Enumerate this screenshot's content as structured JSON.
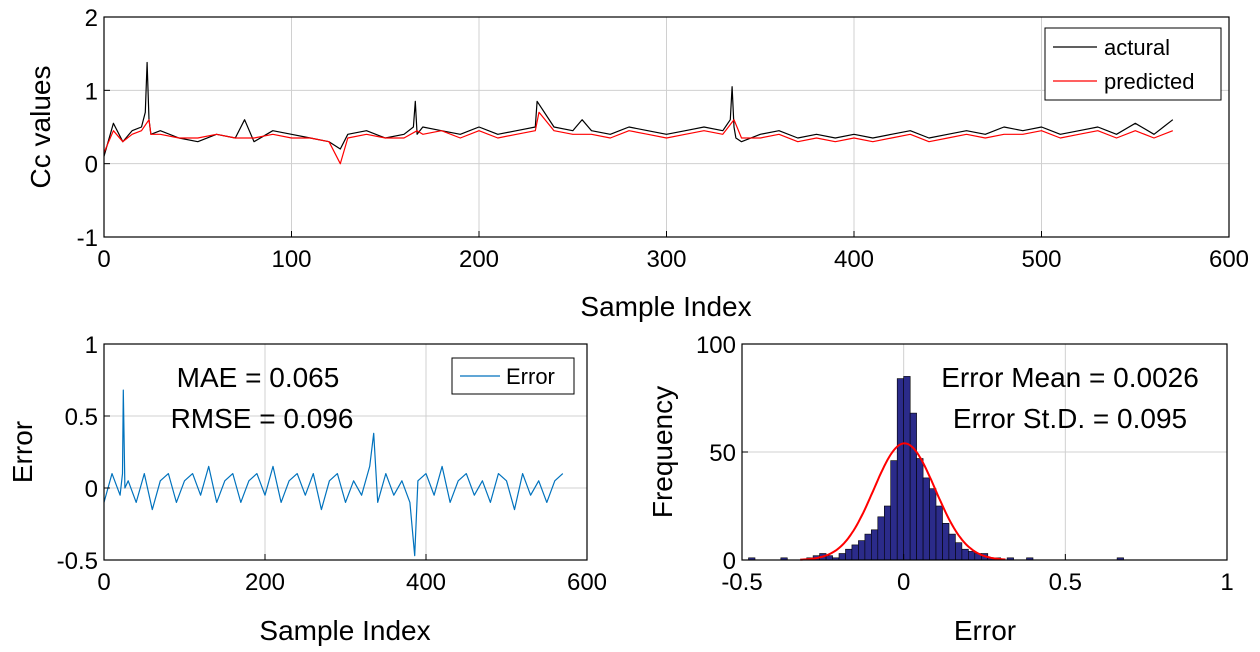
{
  "chart_data": [
    {
      "type": "line",
      "xlabel": "Sample Index",
      "ylabel": "Cc values",
      "xlim": [
        0,
        600
      ],
      "ylim": [
        -1,
        2
      ],
      "xticks": [
        0,
        100,
        200,
        300,
        400,
        500,
        600
      ],
      "yticks": [
        -1,
        0,
        1,
        2
      ],
      "grid": true,
      "legend_position": "top-right",
      "series": [
        {
          "name": "actural",
          "color": "#000000",
          "x": [
            0,
            5,
            10,
            15,
            20,
            22,
            23,
            24,
            25,
            30,
            40,
            50,
            60,
            70,
            75,
            80,
            90,
            100,
            110,
            120,
            126,
            130,
            140,
            150,
            160,
            165,
            166,
            167,
            170,
            180,
            190,
            200,
            210,
            220,
            230,
            231,
            240,
            250,
            255,
            260,
            270,
            280,
            290,
            300,
            310,
            320,
            330,
            334,
            335,
            336,
            337,
            340,
            350,
            360,
            370,
            380,
            390,
            400,
            410,
            420,
            430,
            440,
            450,
            460,
            470,
            480,
            490,
            500,
            510,
            520,
            530,
            540,
            550,
            560,
            565,
            570
          ],
          "y": [
            0.1,
            0.55,
            0.3,
            0.45,
            0.5,
            0.7,
            1.38,
            0.6,
            0.4,
            0.45,
            0.35,
            0.3,
            0.4,
            0.35,
            0.6,
            0.3,
            0.45,
            0.4,
            0.35,
            0.3,
            0.2,
            0.4,
            0.45,
            0.35,
            0.4,
            0.5,
            0.85,
            0.4,
            0.5,
            0.45,
            0.4,
            0.5,
            0.4,
            0.45,
            0.5,
            0.85,
            0.5,
            0.45,
            0.6,
            0.45,
            0.4,
            0.5,
            0.45,
            0.4,
            0.45,
            0.5,
            0.45,
            0.6,
            1.05,
            0.5,
            0.35,
            0.3,
            0.4,
            0.45,
            0.35,
            0.4,
            0.35,
            0.4,
            0.35,
            0.4,
            0.45,
            0.35,
            0.4,
            0.45,
            0.4,
            0.5,
            0.45,
            0.5,
            0.4,
            0.45,
            0.5,
            0.4,
            0.55,
            0.4,
            0.5,
            0.6
          ]
        },
        {
          "name": "predicted",
          "color": "#ff0000",
          "x": [
            0,
            5,
            10,
            15,
            20,
            24,
            25,
            30,
            40,
            50,
            60,
            70,
            80,
            90,
            100,
            110,
            120,
            126,
            130,
            140,
            150,
            160,
            167,
            170,
            180,
            190,
            200,
            210,
            220,
            230,
            232,
            240,
            250,
            260,
            270,
            280,
            290,
            300,
            310,
            320,
            330,
            336,
            340,
            350,
            360,
            370,
            380,
            390,
            400,
            410,
            420,
            430,
            440,
            450,
            460,
            470,
            480,
            490,
            500,
            510,
            520,
            530,
            540,
            550,
            560,
            570
          ],
          "y": [
            0.15,
            0.45,
            0.3,
            0.4,
            0.45,
            0.6,
            0.4,
            0.4,
            0.35,
            0.35,
            0.4,
            0.35,
            0.35,
            0.4,
            0.35,
            0.35,
            0.3,
            0.0,
            0.35,
            0.4,
            0.35,
            0.35,
            0.45,
            0.4,
            0.45,
            0.35,
            0.45,
            0.35,
            0.4,
            0.45,
            0.7,
            0.45,
            0.4,
            0.4,
            0.35,
            0.45,
            0.4,
            0.35,
            0.4,
            0.45,
            0.4,
            0.6,
            0.35,
            0.35,
            0.4,
            0.3,
            0.35,
            0.3,
            0.35,
            0.3,
            0.35,
            0.4,
            0.3,
            0.35,
            0.4,
            0.35,
            0.4,
            0.4,
            0.45,
            0.35,
            0.4,
            0.45,
            0.35,
            0.45,
            0.35,
            0.45
          ]
        }
      ]
    },
    {
      "type": "line",
      "xlabel": "Sample Index",
      "ylabel": "Error",
      "xlim": [
        0,
        600
      ],
      "ylim": [
        -0.5,
        1
      ],
      "xticks": [
        0,
        200,
        400,
        600
      ],
      "yticks": [
        -0.5,
        0,
        0.5,
        1
      ],
      "grid": true,
      "legend_position": "top-right",
      "annotations": [
        "MAE = 0.065",
        "RMSE = 0.096"
      ],
      "series": [
        {
          "name": "Error",
          "color": "#0072bd",
          "x": [
            0,
            10,
            20,
            23,
            24,
            26,
            30,
            40,
            50,
            60,
            70,
            80,
            90,
            100,
            110,
            120,
            130,
            140,
            150,
            160,
            170,
            180,
            190,
            200,
            210,
            220,
            230,
            240,
            250,
            260,
            270,
            280,
            290,
            300,
            310,
            320,
            330,
            335,
            340,
            350,
            360,
            370,
            380,
            386,
            390,
            400,
            410,
            420,
            430,
            440,
            450,
            460,
            470,
            480,
            490,
            500,
            510,
            520,
            530,
            540,
            550,
            560,
            570
          ],
          "y": [
            -0.1,
            0.1,
            -0.05,
            0.1,
            0.68,
            0.0,
            0.05,
            -0.1,
            0.1,
            -0.15,
            0.05,
            0.1,
            -0.1,
            0.05,
            0.1,
            -0.05,
            0.15,
            -0.1,
            0.05,
            0.1,
            -0.1,
            0.05,
            0.1,
            -0.05,
            0.15,
            -0.1,
            0.05,
            0.1,
            -0.05,
            0.1,
            -0.15,
            0.05,
            0.1,
            -0.1,
            0.05,
            -0.05,
            0.15,
            0.38,
            -0.1,
            0.1,
            -0.05,
            0.05,
            -0.1,
            -0.47,
            0.05,
            0.1,
            -0.05,
            0.15,
            -0.1,
            0.05,
            0.1,
            -0.05,
            0.05,
            -0.1,
            0.1,
            0.05,
            -0.15,
            0.1,
            -0.05,
            0.05,
            -0.1,
            0.05,
            0.1
          ]
        }
      ]
    },
    {
      "type": "bar",
      "xlabel": "Error",
      "ylabel": "Frequency",
      "xlim": [
        -0.5,
        1
      ],
      "ylim": [
        0,
        100
      ],
      "xticks": [
        -0.5,
        0,
        0.5,
        1
      ],
      "yticks": [
        0,
        50,
        100
      ],
      "grid": true,
      "annotations": [
        "Error Mean = 0.0026",
        "Error St.D. = 0.095"
      ],
      "bin_width": 0.02,
      "bin_centers": [
        -0.47,
        -0.37,
        -0.29,
        -0.27,
        -0.25,
        -0.23,
        -0.21,
        -0.19,
        -0.17,
        -0.15,
        -0.13,
        -0.11,
        -0.09,
        -0.07,
        -0.05,
        -0.03,
        -0.01,
        0.01,
        0.03,
        0.05,
        0.07,
        0.09,
        0.11,
        0.13,
        0.15,
        0.17,
        0.19,
        0.21,
        0.23,
        0.25,
        0.27,
        0.29,
        0.33,
        0.39,
        0.67
      ],
      "counts": [
        1,
        1,
        1,
        2,
        3,
        2,
        1,
        3,
        5,
        7,
        9,
        12,
        14,
        20,
        25,
        46,
        84,
        85,
        68,
        47,
        38,
        33,
        25,
        17,
        12,
        8,
        5,
        4,
        3,
        3,
        1,
        1,
        1,
        1,
        1
      ],
      "fit": {
        "color": "#ff0000",
        "mean": 0.0026,
        "std": 0.095,
        "peak": 54
      }
    }
  ]
}
